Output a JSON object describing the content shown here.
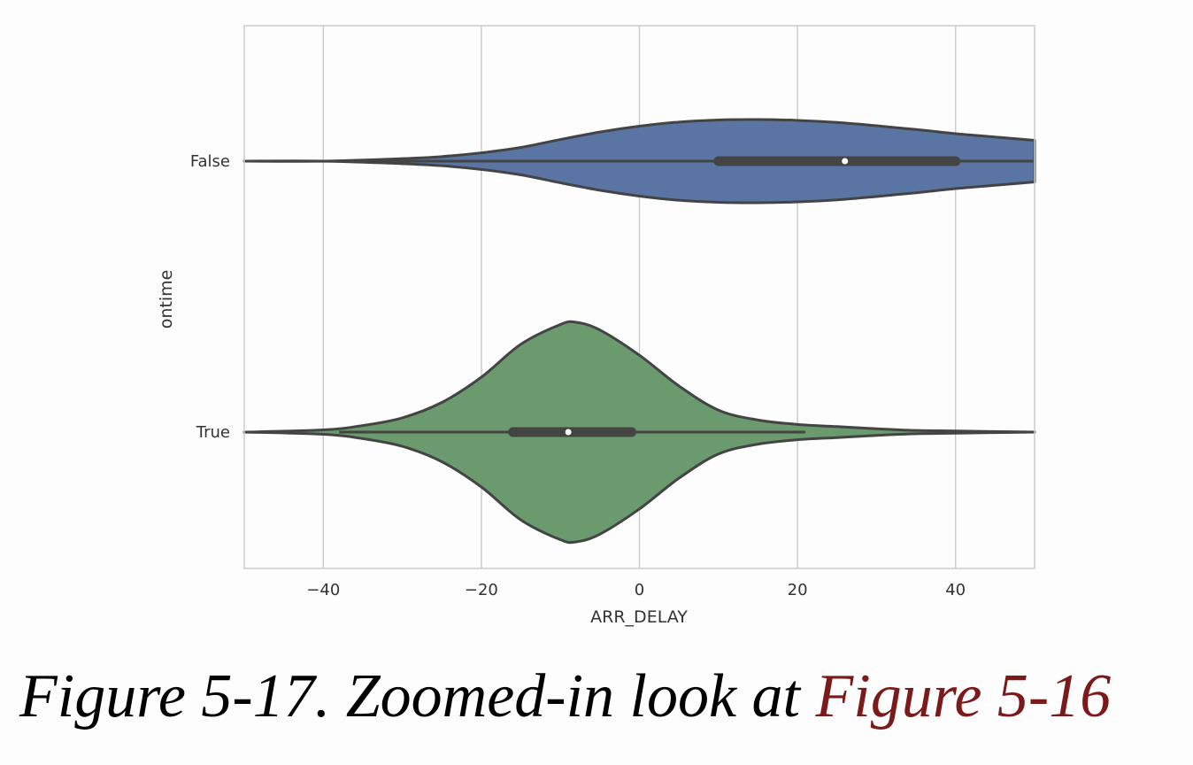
{
  "chart_data": {
    "type": "violin",
    "orientation": "horizontal",
    "xlabel": "ARR_DELAY",
    "ylabel": "ontime",
    "xlim": [
      -50,
      50
    ],
    "xticks": [
      -40,
      -20,
      0,
      20,
      40
    ],
    "xtick_labels": [
      "−40",
      "−20",
      "0",
      "20",
      "40"
    ],
    "grid": true,
    "categories": [
      "False",
      "True"
    ],
    "series": [
      {
        "name": "False",
        "color": "#5a75a4",
        "quartiles": [
          10,
          40
        ],
        "median": 26,
        "whisker": [
          -50,
          50
        ],
        "density": [
          [
            -50,
            0.0
          ],
          [
            -40,
            0.0
          ],
          [
            -30,
            0.06
          ],
          [
            -25,
            0.11
          ],
          [
            -20,
            0.2
          ],
          [
            -15,
            0.33
          ],
          [
            -10,
            0.52
          ],
          [
            -5,
            0.7
          ],
          [
            0,
            0.84
          ],
          [
            5,
            0.94
          ],
          [
            10,
            0.99
          ],
          [
            15,
            1.0
          ],
          [
            20,
            0.98
          ],
          [
            25,
            0.93
          ],
          [
            30,
            0.85
          ],
          [
            35,
            0.76
          ],
          [
            40,
            0.66
          ],
          [
            45,
            0.58
          ],
          [
            50,
            0.5
          ]
        ]
      },
      {
        "name": "True",
        "color": "#6a9a6e",
        "quartiles": [
          -16,
          -1
        ],
        "median": -9,
        "whisker": [
          -38,
          21
        ],
        "density": [
          [
            -50,
            0.0
          ],
          [
            -40,
            0.02
          ],
          [
            -35,
            0.06
          ],
          [
            -30,
            0.13
          ],
          [
            -25,
            0.27
          ],
          [
            -20,
            0.5
          ],
          [
            -15,
            0.8
          ],
          [
            -10,
            0.98
          ],
          [
            -8,
            1.0
          ],
          [
            -5,
            0.93
          ],
          [
            0,
            0.7
          ],
          [
            5,
            0.42
          ],
          [
            10,
            0.2
          ],
          [
            15,
            0.11
          ],
          [
            20,
            0.07
          ],
          [
            25,
            0.05
          ],
          [
            30,
            0.03
          ],
          [
            35,
            0.015
          ],
          [
            40,
            0.01
          ],
          [
            50,
            0.0
          ]
        ]
      }
    ]
  },
  "caption": {
    "prefix": "Figure 5-17. Zoomed-in look at ",
    "reference": "Figure 5-16"
  }
}
